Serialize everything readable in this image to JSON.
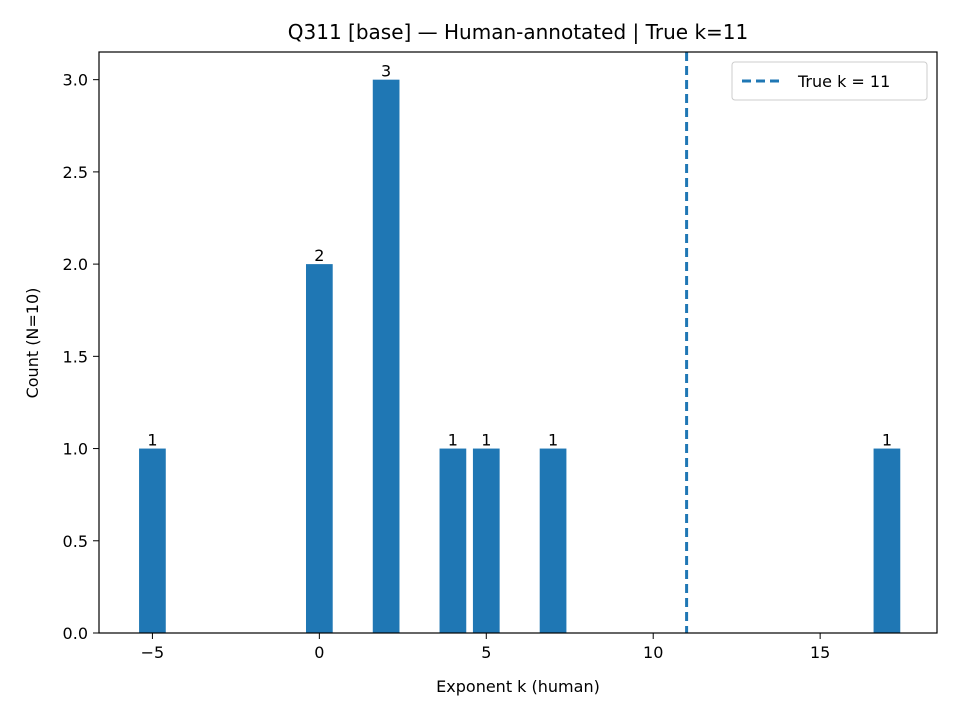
{
  "chart_data": {
    "type": "bar",
    "title": "Q311 [base] — Human-annotated | True k=11",
    "xlabel": "Exponent k (human)",
    "ylabel": "Count (N=10)",
    "xlim": [
      -6.6,
      18.5
    ],
    "ylim": [
      0,
      3.15
    ],
    "bar_width": 0.8,
    "x": [
      -5,
      0,
      2,
      4,
      5,
      7,
      17
    ],
    "values": [
      1,
      2,
      3,
      1,
      1,
      1,
      1
    ],
    "bar_labels": [
      "1",
      "2",
      "3",
      "1",
      "1",
      "1",
      "1"
    ],
    "xticks": [
      -5,
      0,
      5,
      10,
      15
    ],
    "xtick_labels": [
      "−5",
      "0",
      "5",
      "10",
      "15"
    ],
    "yticks": [
      0,
      0.5,
      1,
      1.5,
      2,
      2.5,
      3
    ],
    "ytick_labels": [
      "0.0",
      "0.5",
      "1.0",
      "1.5",
      "2.0",
      "2.5",
      "3.0"
    ],
    "reference_line": {
      "x": 11,
      "style": "dashed",
      "label": "True k = 11"
    },
    "legend_placement": "top-right",
    "grid": false,
    "colors": {
      "bar": "#1f77b4",
      "reference_line": "#1f77b4"
    }
  }
}
